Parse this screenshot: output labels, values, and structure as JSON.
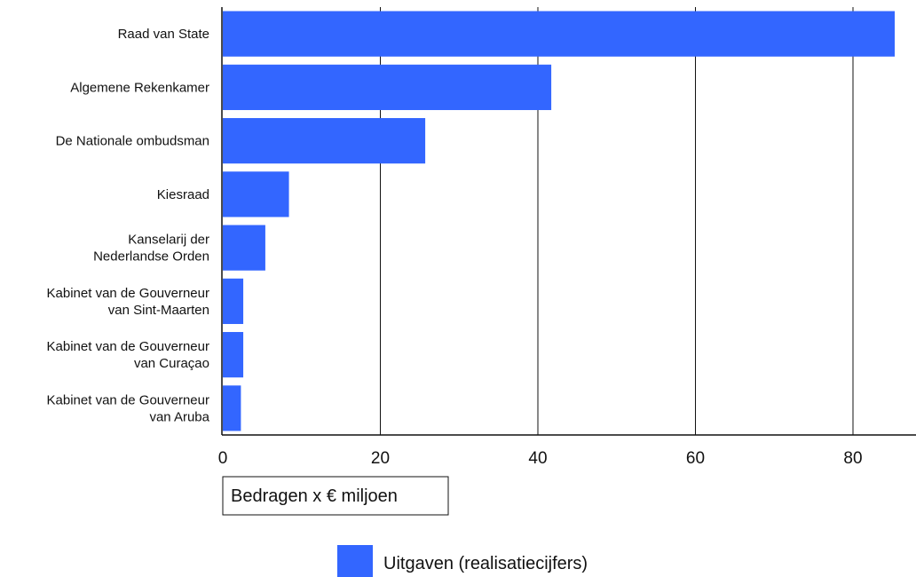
{
  "chart_data": {
    "type": "bar",
    "orientation": "horizontal",
    "categories": [
      [
        "Raad van State"
      ],
      [
        "Algemene Rekenkamer"
      ],
      [
        "De Nationale ombudsman"
      ],
      [
        "Kiesraad"
      ],
      [
        "Kanselarij der",
        "Nederlandse Orden"
      ],
      [
        "Kabinet van de Gouverneur",
        "van Sint-Maarten"
      ],
      [
        "Kabinet van de Gouverneur",
        "van Curaçao"
      ],
      [
        "Kabinet van de Gouverneur",
        "van Aruba"
      ]
    ],
    "series": [
      {
        "name": "Uitgaven (realisatiecijfers)",
        "color": "#3366ff",
        "values": [
          85.3,
          41.7,
          25.7,
          8.4,
          5.4,
          2.6,
          2.6,
          2.3
        ]
      }
    ],
    "xlabel": "Bedragen x € miljoen",
    "xlim": [
      0,
      88
    ],
    "xticks": [
      "0",
      "20",
      "40",
      "60",
      "80"
    ],
    "grid": "vertical",
    "legend_position": "bottom-center"
  }
}
